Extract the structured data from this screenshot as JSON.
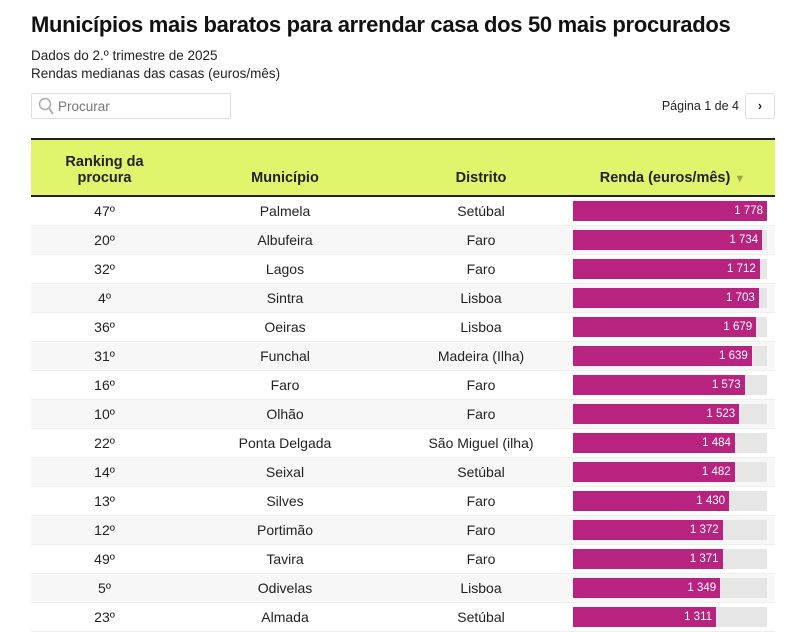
{
  "title": "Municípios mais baratos para arrendar casa dos 50 mais procurados",
  "subtitle1": "Dados do 2.º trimestre de 2025",
  "subtitle2": "Rendas medianas das casas (euros/mês)",
  "search": {
    "placeholder": "Procurar",
    "icon": "search-icon"
  },
  "pager": {
    "label": "Página 1 de 4",
    "next": "›"
  },
  "colors": {
    "header_bg": "#e2f46c",
    "bar": "#b8237f",
    "track": "#e6e6e6"
  },
  "columns": [
    "Ranking da procura",
    "Município",
    "Distrito",
    "Renda (euros/mês)"
  ],
  "sort_indicator": "▼",
  "bar_max": 1778,
  "rows": [
    {
      "rank": "47º",
      "municipio": "Palmela",
      "distrito": "Setúbal",
      "renda": 1778,
      "renda_label": "1 778"
    },
    {
      "rank": "20º",
      "municipio": "Albufeira",
      "distrito": "Faro",
      "renda": 1734,
      "renda_label": "1 734"
    },
    {
      "rank": "32º",
      "municipio": "Lagos",
      "distrito": "Faro",
      "renda": 1712,
      "renda_label": "1 712"
    },
    {
      "rank": "4º",
      "municipio": "Sintra",
      "distrito": "Lisboa",
      "renda": 1703,
      "renda_label": "1 703"
    },
    {
      "rank": "36º",
      "municipio": "Oeiras",
      "distrito": "Lisboa",
      "renda": 1679,
      "renda_label": "1 679"
    },
    {
      "rank": "31º",
      "municipio": "Funchal",
      "distrito": "Madeira (Ilha)",
      "renda": 1639,
      "renda_label": "1 639"
    },
    {
      "rank": "16º",
      "municipio": "Faro",
      "distrito": "Faro",
      "renda": 1573,
      "renda_label": "1 573"
    },
    {
      "rank": "10º",
      "municipio": "Olhão",
      "distrito": "Faro",
      "renda": 1523,
      "renda_label": "1 523"
    },
    {
      "rank": "22º",
      "municipio": "Ponta Delgada",
      "distrito": "São Miguel (ilha)",
      "renda": 1484,
      "renda_label": "1 484"
    },
    {
      "rank": "14º",
      "municipio": "Seixal",
      "distrito": "Setúbal",
      "renda": 1482,
      "renda_label": "1 482"
    },
    {
      "rank": "13º",
      "municipio": "Silves",
      "distrito": "Faro",
      "renda": 1430,
      "renda_label": "1 430"
    },
    {
      "rank": "12º",
      "municipio": "Portimão",
      "distrito": "Faro",
      "renda": 1372,
      "renda_label": "1 372"
    },
    {
      "rank": "49º",
      "municipio": "Tavira",
      "distrito": "Faro",
      "renda": 1371,
      "renda_label": "1 371"
    },
    {
      "rank": "5º",
      "municipio": "Odivelas",
      "distrito": "Lisboa",
      "renda": 1349,
      "renda_label": "1 349"
    },
    {
      "rank": "23º",
      "municipio": "Almada",
      "distrito": "Setúbal",
      "renda": 1311,
      "renda_label": "1 311"
    }
  ]
}
